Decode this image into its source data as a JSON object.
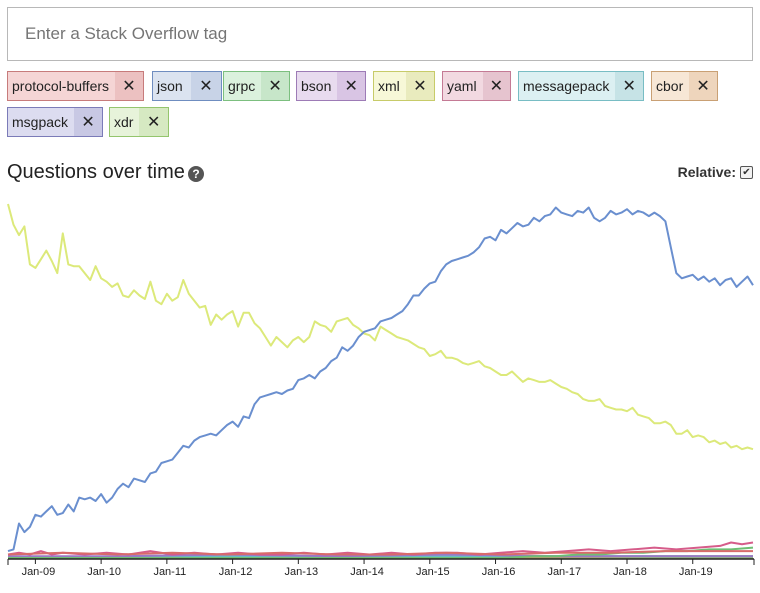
{
  "search": {
    "placeholder": "Enter a Stack Overflow tag",
    "value": ""
  },
  "tags": [
    {
      "label": "protocol-buffers",
      "bg": "#f5d5d5",
      "border": "#c77b7b",
      "xbg": "#ecc1c1"
    },
    {
      "label": "json",
      "bg": "#dbe3f0",
      "border": "#6f8dc0",
      "xbg": "#c8d3e7"
    },
    {
      "label": "grpc",
      "bg": "#dbf1dd",
      "border": "#7cbf7f",
      "xbg": "#c7e6c9"
    },
    {
      "label": "bson",
      "bg": "#e8dbef",
      "border": "#9d7bb6",
      "xbg": "#d9c5e4"
    },
    {
      "label": "xml",
      "bg": "#f7f8d8",
      "border": "#c7cb69",
      "xbg": "#e9ebbe"
    },
    {
      "label": "yaml",
      "bg": "#f2d9e1",
      "border": "#c47a95",
      "xbg": "#e6c4cf"
    },
    {
      "label": "messagepack",
      "bg": "#dcf0f2",
      "border": "#78bdc4",
      "xbg": "#c6e3e6"
    },
    {
      "label": "cbor",
      "bg": "#f7e7d6",
      "border": "#c9a074",
      "xbg": "#eed5bc"
    },
    {
      "label": "msgpack",
      "bg": "#dcdcf0",
      "border": "#7b7bb8",
      "xbg": "#c8c8e4"
    },
    {
      "label": "xdr",
      "bg": "#e7f3da",
      "border": "#94c56d",
      "xbg": "#d6e9c2"
    }
  ],
  "tag_remove_symbol": "✕",
  "section": {
    "title": "Questions over time",
    "help_icon": "?",
    "relative_label": "Relative:",
    "relative_checked": true,
    "check_mark": "✔"
  },
  "chart_data": {
    "type": "line",
    "x_ticks": [
      "Jan-09",
      "Jan-10",
      "Jan-11",
      "Jan-12",
      "Jan-13",
      "Jan-14",
      "Jan-15",
      "Jan-16",
      "Jan-17",
      "Jan-18",
      "Jan-19"
    ],
    "x_range": [
      "Aug-2008",
      "Dec-2019"
    ],
    "y_axis_visible": false,
    "grid": false,
    "legend": "none",
    "series": [
      {
        "key": "json",
        "color": "#6a8fcf",
        "t": [
          0,
          1,
          2,
          3,
          4,
          5,
          6,
          7,
          8,
          9,
          10,
          11,
          12,
          13,
          14,
          15,
          16,
          17,
          18,
          19,
          20,
          21,
          22,
          23,
          24,
          25,
          26,
          27,
          28,
          29,
          30,
          31,
          32,
          33,
          34,
          35,
          36,
          37,
          38,
          39,
          40,
          41,
          42,
          43,
          44,
          45,
          46,
          47,
          48,
          49,
          50,
          51,
          52,
          53,
          54,
          55,
          56,
          57,
          58,
          59,
          60,
          61,
          62,
          63,
          64,
          65,
          66,
          67,
          68,
          69,
          70,
          71,
          72,
          73,
          74,
          75,
          76,
          77,
          78,
          79,
          80,
          81,
          82,
          83,
          84,
          85,
          86,
          87,
          88,
          89,
          90,
          91,
          92,
          93,
          94,
          95,
          96,
          97,
          98,
          99,
          100,
          101,
          102,
          103,
          104,
          105,
          106,
          107,
          108,
          109,
          110,
          111,
          112,
          113,
          114,
          115,
          116,
          117,
          118,
          119,
          120,
          121,
          122,
          123,
          124,
          125,
          126,
          127,
          128,
          129,
          130,
          131,
          132,
          133,
          134,
          135,
          136
        ],
        "v": [
          4,
          5,
          20,
          15,
          18,
          25,
          24,
          27,
          30,
          25,
          26,
          31,
          27,
          35,
          34,
          35,
          33,
          37,
          32,
          35,
          40,
          43,
          41,
          46,
          45,
          44,
          49,
          50,
          55,
          56,
          57,
          61,
          65,
          64,
          68,
          70,
          71,
          72,
          71,
          74,
          77,
          79,
          76,
          82,
          81,
          89,
          93,
          94,
          95,
          96,
          95,
          97,
          98,
          103,
          104,
          106,
          104,
          108,
          110,
          114,
          116,
          122,
          120,
          123,
          128,
          131,
          132,
          133,
          137,
          138,
          139,
          141,
          143,
          147,
          152,
          152,
          156,
          159,
          160,
          166,
          170,
          172,
          173,
          174,
          175,
          177,
          180,
          185,
          186,
          184,
          190,
          188,
          191,
          194,
          192,
          193,
          197,
          195,
          198,
          199,
          203,
          200,
          199,
          198,
          201,
          200,
          203,
          197,
          195,
          197,
          201,
          199,
          200,
          202,
          199,
          201,
          200,
          198,
          200,
          198,
          195,
          180,
          165,
          162,
          163,
          164,
          161,
          163,
          160,
          162,
          158,
          161,
          162,
          157,
          160,
          163,
          158
        ],
        "scale": 1
      },
      {
        "key": "xml",
        "color": "#dce97a",
        "t": [
          0,
          1,
          2,
          3,
          4,
          5,
          6,
          7,
          8,
          9,
          10,
          11,
          12,
          13,
          14,
          15,
          16,
          17,
          18,
          19,
          20,
          21,
          22,
          23,
          24,
          25,
          26,
          27,
          28,
          29,
          30,
          31,
          32,
          33,
          34,
          35,
          36,
          37,
          38,
          39,
          40,
          41,
          42,
          43,
          44,
          45,
          46,
          47,
          48,
          49,
          50,
          51,
          52,
          53,
          54,
          55,
          56,
          57,
          58,
          59,
          60,
          61,
          62,
          63,
          64,
          65,
          66,
          67,
          68,
          69,
          70,
          71,
          72,
          73,
          74,
          75,
          76,
          77,
          78,
          79,
          80,
          81,
          82,
          83,
          84,
          85,
          86,
          87,
          88,
          89,
          90,
          91,
          92,
          93,
          94,
          95,
          96,
          97,
          98,
          99,
          100,
          101,
          102,
          103,
          104,
          105,
          106,
          107,
          108,
          109,
          110,
          111,
          112,
          113,
          114,
          115,
          116,
          117,
          118,
          119,
          120,
          121,
          122,
          123,
          124,
          125,
          126,
          127,
          128,
          129,
          130,
          131,
          132,
          133,
          134,
          135,
          136
        ],
        "v": [
          205,
          193,
          187,
          192,
          170,
          168,
          173,
          178,
          172,
          165,
          188,
          170,
          169,
          169,
          165,
          161,
          169,
          162,
          160,
          157,
          159,
          152,
          151,
          155,
          152,
          150,
          160,
          149,
          147,
          153,
          149,
          151,
          161,
          153,
          149,
          145,
          146,
          135,
          141,
          138,
          141,
          143,
          134,
          142,
          142,
          136,
          133,
          128,
          123,
          128,
          125,
          122,
          126,
          128,
          125,
          128,
          137,
          135,
          134,
          131,
          137,
          138,
          139,
          135,
          133,
          130,
          129,
          126,
          134,
          132,
          130,
          128,
          127,
          126,
          124,
          122,
          121,
          117,
          118,
          120,
          116,
          116,
          115,
          113,
          112,
          113,
          114,
          111,
          110,
          108,
          106,
          106,
          108,
          105,
          102,
          104,
          103,
          102,
          102,
          103,
          101,
          99,
          98,
          96,
          95,
          92,
          91,
          91,
          92,
          88,
          87,
          86,
          86,
          85,
          87,
          83,
          82,
          81,
          78,
          78,
          79,
          77,
          72,
          72,
          74,
          70,
          71,
          70,
          67,
          68,
          66,
          67,
          64,
          65,
          63,
          64,
          63
        ],
        "scale": 1
      },
      {
        "key": "protocol-buffers",
        "color": "#d86b6b",
        "t": [
          0,
          10,
          20,
          30,
          40,
          50,
          60,
          70,
          80,
          90,
          100,
          110,
          120,
          130,
          136
        ],
        "v": [
          2,
          3,
          2,
          3,
          2,
          3,
          2,
          2,
          3,
          2,
          3,
          3,
          4,
          4,
          4
        ],
        "scale": 1
      },
      {
        "key": "yaml",
        "color": "#d65c8a",
        "t": [
          0,
          2,
          4,
          6,
          8,
          10,
          14,
          18,
          22,
          26,
          30,
          34,
          38,
          42,
          46,
          50,
          54,
          58,
          62,
          66,
          70,
          74,
          78,
          82,
          86,
          90,
          94,
          98,
          102,
          106,
          110,
          114,
          118,
          122,
          126,
          130,
          132,
          134,
          136
        ],
        "v": [
          2,
          3,
          2,
          4,
          2,
          3,
          2,
          3,
          2,
          4,
          2,
          3,
          2,
          3,
          2,
          2,
          3,
          2,
          3,
          2,
          3,
          2,
          3,
          3,
          2,
          3,
          4,
          3,
          4,
          5,
          4,
          5,
          6,
          5,
          6,
          7,
          9,
          8,
          9
        ],
        "scale": 1
      },
      {
        "key": "grpc",
        "color": "#6fbe73",
        "t": [
          0,
          90,
          96,
          100,
          104,
          108,
          112,
          116,
          120,
          124,
          128,
          132,
          136
        ],
        "v": [
          0,
          0,
          1,
          1,
          2,
          2,
          3,
          3,
          4,
          4,
          5,
          5,
          6
        ],
        "scale": 1
      },
      {
        "key": "bson",
        "color": "#9a79c6",
        "t": [
          0,
          20,
          40,
          60,
          80,
          100,
          120,
          136
        ],
        "v": [
          1,
          1,
          2,
          1,
          2,
          1,
          1,
          1
        ],
        "scale": 1
      },
      {
        "key": "messagepack",
        "color": "#66bcc8",
        "t": [
          0,
          40,
          80,
          120,
          136
        ],
        "v": [
          0,
          1,
          1,
          1,
          1
        ],
        "scale": 1
      },
      {
        "key": "cbor",
        "color": "#c99a60",
        "t": [
          0,
          80,
          120,
          136
        ],
        "v": [
          0,
          0,
          1,
          1
        ],
        "scale": 1
      },
      {
        "key": "msgpack",
        "color": "#6e6eb8",
        "t": [
          0,
          40,
          80,
          120,
          136
        ],
        "v": [
          0,
          1,
          1,
          1,
          1
        ],
        "scale": 1
      },
      {
        "key": "xdr",
        "color": "#94c56d",
        "t": [
          0,
          60,
          120,
          136
        ],
        "v": [
          0,
          0,
          0,
          0
        ],
        "scale": 1
      }
    ]
  }
}
